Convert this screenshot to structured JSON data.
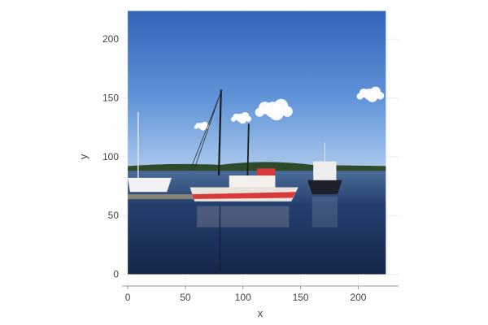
{
  "chart_data": {
    "type": "image",
    "xlabel": "x",
    "ylabel": "y",
    "xlim": [
      -5,
      235
    ],
    "ylim": [
      -10,
      225
    ],
    "x_ticks": [
      {
        "value": 0,
        "label": "0"
      },
      {
        "value": 50,
        "label": "50"
      },
      {
        "value": 100,
        "label": "100"
      },
      {
        "value": 150,
        "label": "150"
      },
      {
        "value": 200,
        "label": "200"
      }
    ],
    "y_ticks": [
      {
        "value": 0,
        "label": "0"
      },
      {
        "value": 50,
        "label": "50"
      },
      {
        "value": 100,
        "label": "100"
      },
      {
        "value": 150,
        "label": "150"
      },
      {
        "value": 200,
        "label": "200"
      }
    ],
    "image_extent": {
      "xmin": 0,
      "xmax": 224,
      "ymin": 0,
      "ymax": 224
    },
    "image_content": "photo of a harbor: boats moored at a dock under a blue sky with white clouds",
    "grid": true,
    "colors": {
      "sky_top": "#3a69bd",
      "sky_bottom": "#9fc1ea",
      "water": "#1e3560",
      "boat_hull_red": "#d8393b",
      "grid": "#ececec",
      "axis": "#999999"
    }
  }
}
